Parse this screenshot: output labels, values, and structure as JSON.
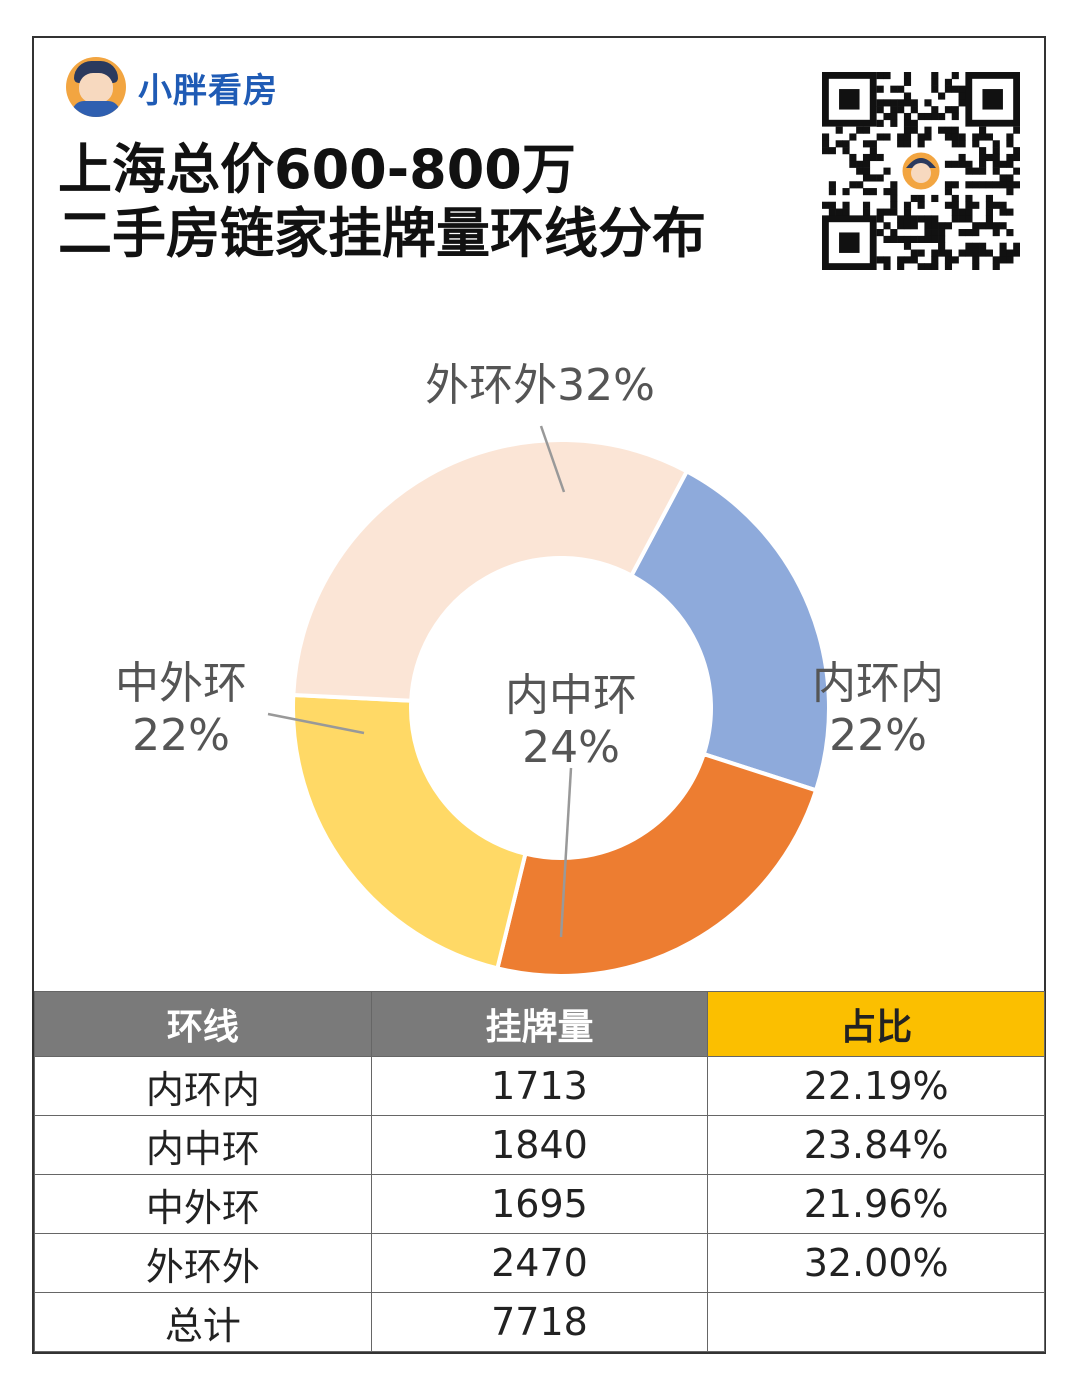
{
  "brand": {
    "name": "小胖看房"
  },
  "title": {
    "line1": "上海总价600-800万",
    "line2": "二手房链家挂牌量环线分布"
  },
  "chart_data": {
    "type": "pie",
    "variant": "donut",
    "slices": [
      {
        "name": "内环内",
        "value": 22.19,
        "label_line1": "内环内",
        "label_line2": "22%",
        "color": "#8eaadb"
      },
      {
        "name": "内中环",
        "value": 23.84,
        "label_line1": "内中环",
        "label_line2": "24%",
        "color": "#ed7d31"
      },
      {
        "name": "中外环",
        "value": 21.96,
        "label_line1": "中外环",
        "label_line2": "22%",
        "color": "#ffd966"
      },
      {
        "name": "外环外",
        "value": 32.0,
        "label_line1": "外环外32%",
        "label_line2": "",
        "color": "#fbe5d6"
      }
    ],
    "legend": "none"
  },
  "table": {
    "headers": [
      "环线",
      "挂牌量",
      "占比"
    ],
    "rows": [
      [
        "内环内",
        "1713",
        "22.19%"
      ],
      [
        "内中环",
        "1840",
        "23.84%"
      ],
      [
        "中外环",
        "1695",
        "21.96%"
      ],
      [
        "外环外",
        "2470",
        "32.00%"
      ],
      [
        "总计",
        "7718",
        ""
      ]
    ]
  },
  "colors": {
    "header_gray": "#7a7a7a",
    "header_accent": "#fbbf00",
    "brand_blue": "#1f5bb5"
  },
  "icons": {
    "avatar": "cartoon-avatar-icon",
    "qr": "qr-code-icon"
  }
}
